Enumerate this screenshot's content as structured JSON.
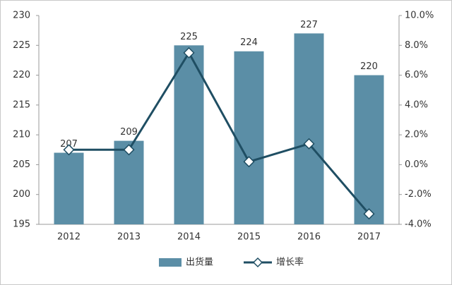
{
  "chart_data": {
    "type": "bar_line",
    "categories": [
      "2012",
      "2013",
      "2014",
      "2015",
      "2016",
      "2017"
    ],
    "series": [
      {
        "name": "出货量",
        "type": "bar",
        "color": "#5b8ea6",
        "values": [
          207,
          209,
          225,
          224,
          227,
          220
        ]
      },
      {
        "name": "增长率",
        "type": "line",
        "axis": "y2",
        "color": "#1f4e63",
        "values": [
          1.0,
          1.0,
          7.5,
          0.2,
          1.4,
          -3.3
        ]
      }
    ],
    "ylim": [
      195,
      230
    ],
    "yticks": [
      195,
      200,
      205,
      210,
      215,
      220,
      225,
      230
    ],
    "y2lim": [
      -4,
      10
    ],
    "y2ticks": [
      {
        "value": -4,
        "label": "-4.0%"
      },
      {
        "value": -2,
        "label": "-2.0%"
      },
      {
        "value": 0,
        "label": "0.0%"
      },
      {
        "value": 2,
        "label": "2.0%"
      },
      {
        "value": 4,
        "label": "4.0%"
      },
      {
        "value": 6,
        "label": "6.0%"
      },
      {
        "value": 8,
        "label": "8.0%"
      },
      {
        "value": 10,
        "label": "10.0%"
      }
    ],
    "legend": "bottom"
  }
}
